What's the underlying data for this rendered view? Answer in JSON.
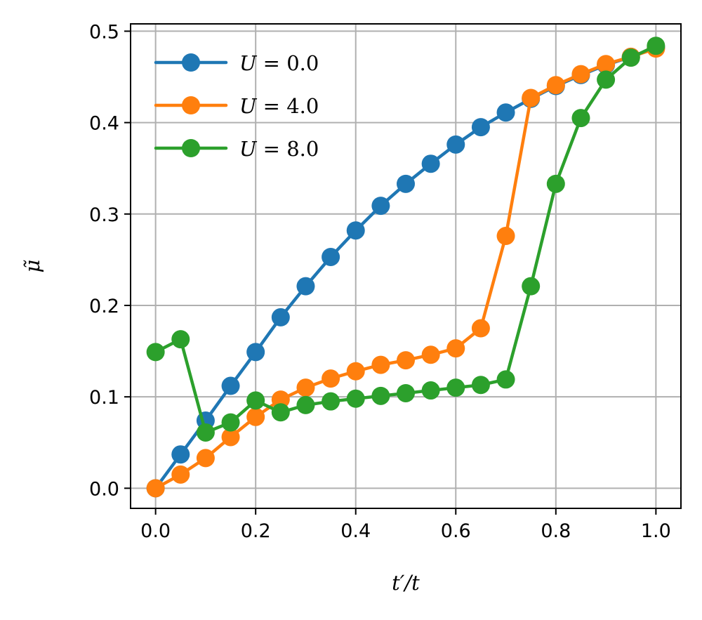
{
  "chart_data": {
    "type": "line",
    "xlabel": "t′/t",
    "ylabel": "μ̃",
    "xlim": [
      -0.05,
      1.05
    ],
    "ylim": [
      -0.022,
      0.508
    ],
    "xticks": [
      0.0,
      0.2,
      0.4,
      0.6,
      0.8,
      1.0
    ],
    "xtick_labels": [
      "0.0",
      "0.2",
      "0.4",
      "0.6",
      "0.8",
      "1.0"
    ],
    "yticks": [
      0.0,
      0.1,
      0.2,
      0.3,
      0.4,
      0.5
    ],
    "ytick_labels": [
      "0.0",
      "0.1",
      "0.2",
      "0.3",
      "0.4",
      "0.5"
    ],
    "grid": true,
    "legend_position": "top-left",
    "x": [
      0.0,
      0.05,
      0.1,
      0.15,
      0.2,
      0.25,
      0.3,
      0.35,
      0.4,
      0.45,
      0.5,
      0.55,
      0.6,
      0.65,
      0.7,
      0.75,
      0.8,
      0.85,
      0.9,
      0.95,
      1.0
    ],
    "series": [
      {
        "name": "U = 0.0",
        "color": "#1f77b4",
        "values": [
          0.0,
          0.037,
          0.074,
          0.112,
          0.149,
          0.187,
          0.221,
          0.253,
          0.282,
          0.309,
          0.333,
          0.355,
          0.376,
          0.395,
          0.411,
          0.426,
          0.44,
          0.452,
          0.463,
          0.472,
          0.482
        ]
      },
      {
        "name": "U = 4.0",
        "color": "#ff7f0e",
        "values": [
          0.0,
          0.015,
          0.033,
          0.056,
          0.078,
          0.097,
          0.11,
          0.12,
          0.128,
          0.135,
          0.14,
          0.146,
          0.153,
          0.175,
          0.276,
          0.427,
          0.441,
          0.453,
          0.464,
          0.472,
          0.481
        ]
      },
      {
        "name": "U = 8.0",
        "color": "#2ca02c",
        "values": [
          0.149,
          0.163,
          0.061,
          0.072,
          0.096,
          0.083,
          0.091,
          0.095,
          0.098,
          0.101,
          0.104,
          0.107,
          0.11,
          0.113,
          0.119,
          0.221,
          0.333,
          0.405,
          0.447,
          0.471,
          0.484
        ]
      }
    ],
    "legend_labels": [
      {
        "var": "U",
        "text": " = 0.0"
      },
      {
        "var": "U",
        "text": " = 4.0"
      },
      {
        "var": "U",
        "text": " = 8.0"
      }
    ]
  }
}
